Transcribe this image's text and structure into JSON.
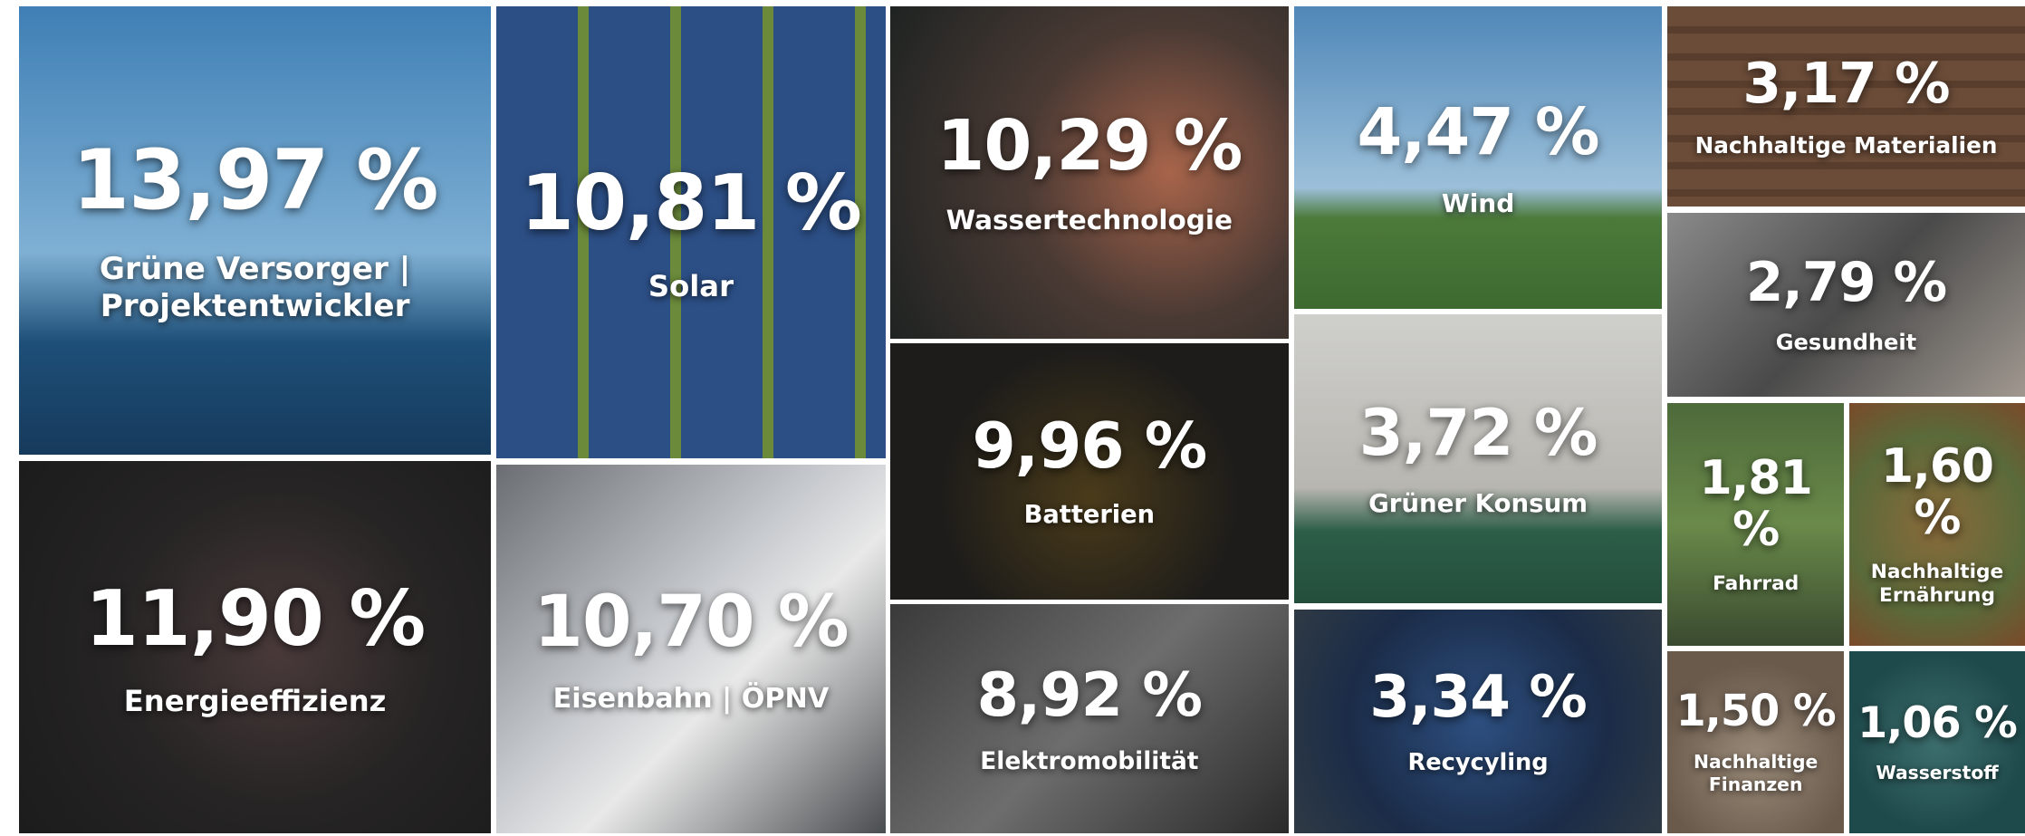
{
  "chart_data": {
    "type": "treemap",
    "categories": [
      "Grüne Versorger | Projektentwickler",
      "Energieeffizienz",
      "Solar",
      "Eisenbahn | ÖPNV",
      "Wassertechnologie",
      "Batterien",
      "Elektromobilität",
      "Wind",
      "Grüner Konsum",
      "Recycyling",
      "Nachhaltige Materialien",
      "Gesundheit",
      "Fahrrad",
      "Nachhaltige Ernährung",
      "Nachhaltige Finanzen",
      "Wasserstoff"
    ],
    "values": [
      13.97,
      11.9,
      10.81,
      10.7,
      10.29,
      9.96,
      8.92,
      4.47,
      3.72,
      3.34,
      3.17,
      2.79,
      1.81,
      1.6,
      1.5,
      1.06
    ],
    "value_labels": [
      "13,97 %",
      "11,90 %",
      "10,81 %",
      "10,70 %",
      "10,29 %",
      "9,96 %",
      "8,92 %",
      "4,47 %",
      "3,72 %",
      "3,34 %",
      "3,17 %",
      "2,79 %",
      "1,81 %",
      "1,60 %",
      "1,50 %",
      "1,06 %"
    ]
  }
}
